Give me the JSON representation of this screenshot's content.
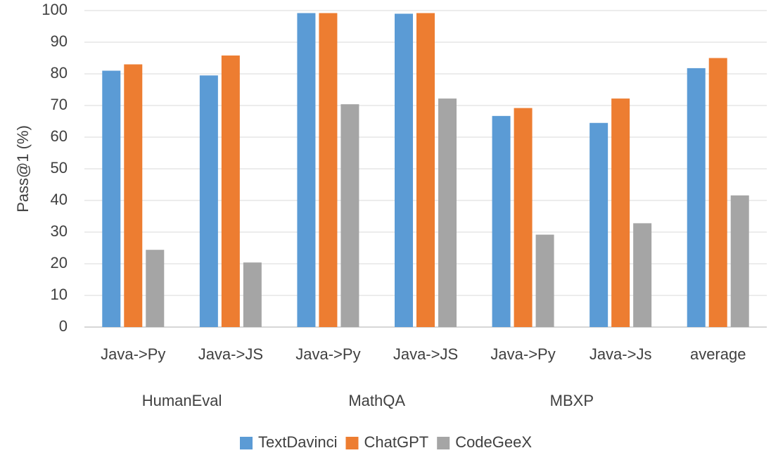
{
  "chart_data": {
    "type": "bar",
    "title": "",
    "xlabel": "",
    "ylabel": "Pass@1 (%)",
    "ylim": [
      0,
      100
    ],
    "yticks": [
      0,
      10,
      20,
      30,
      40,
      50,
      60,
      70,
      80,
      90,
      100
    ],
    "grid": true,
    "legend_position": "bottom",
    "categories": [
      "Java->Py",
      "Java->JS",
      "Java->Py",
      "Java->JS",
      "Java->Py",
      "Java->Js",
      "average"
    ],
    "groups": [
      {
        "label": "HumanEval",
        "categories": [
          0,
          1
        ]
      },
      {
        "label": "MathQA",
        "categories": [
          2,
          3
        ]
      },
      {
        "label": "MBXP",
        "categories": [
          4,
          5
        ]
      }
    ],
    "series": [
      {
        "name": "TextDavinci",
        "color": "#5b9bd5",
        "values": [
          81,
          79.5,
          99.2,
          99,
          66.7,
          64.5,
          81.8
        ]
      },
      {
        "name": "ChatGPT",
        "color": "#ed7d31",
        "values": [
          83,
          85.8,
          99.2,
          99.2,
          69.2,
          72.2,
          85
        ]
      },
      {
        "name": "CodeGeeX",
        "color": "#a5a5a5",
        "values": [
          24.4,
          20.4,
          70.4,
          72.2,
          29.2,
          32.8,
          41.6
        ]
      }
    ]
  }
}
